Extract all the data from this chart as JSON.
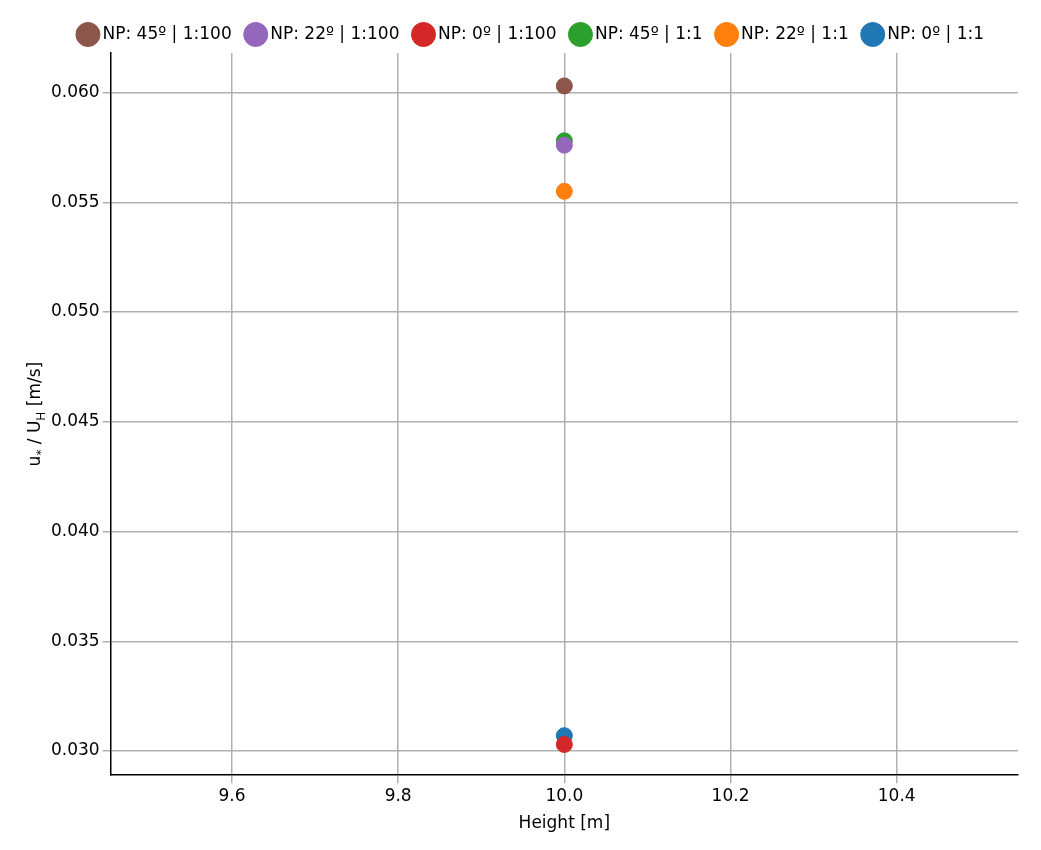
{
  "chart_data": {
    "type": "scatter",
    "xlabel": "Height [m]",
    "ylabel": "u$_{*}$ / U$_{H}$ [m/s]",
    "x": [
      10.0
    ],
    "series": [
      {
        "name": "NP: 0º | 1:1",
        "color": "#1f77b4",
        "values": [
          0.0307
        ]
      },
      {
        "name": "NP: 22º | 1:1",
        "color": "#ff7f0e",
        "values": [
          0.0555
        ]
      },
      {
        "name": "NP: 45º | 1:1",
        "color": "#2ca02c",
        "values": [
          0.0578
        ]
      },
      {
        "name": "NP: 0º | 1:100",
        "color": "#d62728",
        "values": [
          0.0303
        ]
      },
      {
        "name": "NP: 22º | 1:100",
        "color": "#9467bd",
        "values": [
          0.0576
        ]
      },
      {
        "name": "NP: 45º | 1:100",
        "color": "#8c564b",
        "values": [
          0.0603
        ]
      }
    ],
    "xlim": [
      9.454,
      10.546
    ],
    "xticks": [
      {
        "value": 9.6,
        "label": "9.6"
      },
      {
        "value": 9.8,
        "label": "9.8"
      },
      {
        "value": 10.0,
        "label": "10.0"
      },
      {
        "value": 10.2,
        "label": "10.2"
      },
      {
        "value": 10.4,
        "label": "10.4"
      }
    ],
    "ylim": [
      0.0289,
      0.0618
    ],
    "yticks": [
      {
        "value": 0.03,
        "label": "0.030"
      },
      {
        "value": 0.035,
        "label": "0.035"
      },
      {
        "value": 0.04,
        "label": "0.040"
      },
      {
        "value": 0.045,
        "label": "0.045"
      },
      {
        "value": 0.05,
        "label": "0.050"
      },
      {
        "value": 0.055,
        "label": "0.055"
      },
      {
        "value": 0.06,
        "label": "0.060"
      }
    ],
    "grid": true,
    "legend": "top",
    "marker": "circle"
  }
}
